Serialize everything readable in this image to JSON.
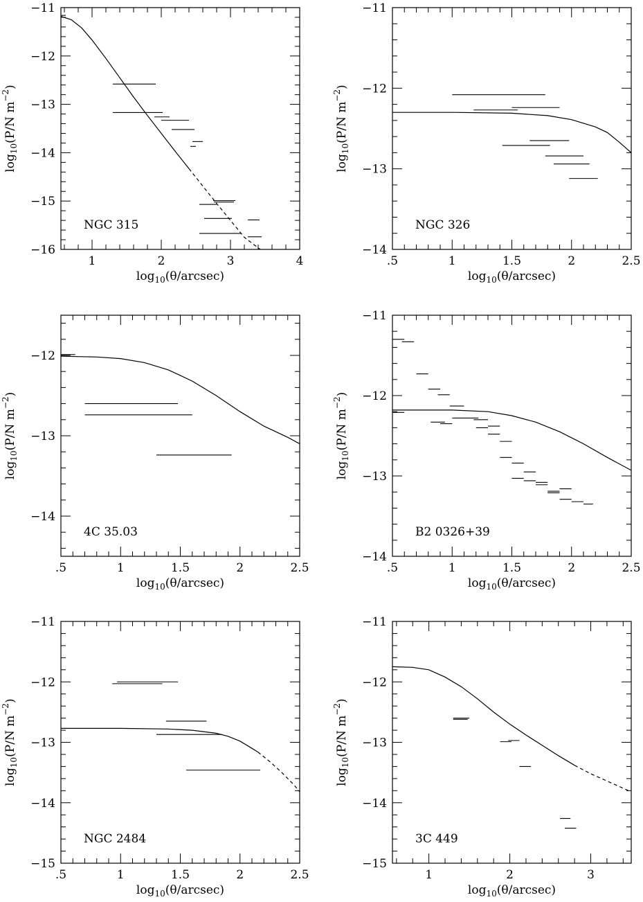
{
  "figure": {
    "panels": [
      {
        "id": "ngc315",
        "source_label": "NGC  315",
        "xlabel_main": "log",
        "xlabel_sub": "10",
        "xlabel_rest": "(θ/arcsec)",
        "ylabel_main": "log",
        "ylabel_sub": "10",
        "ylabel_mid": "(P/N m",
        "ylabel_sup": "−2",
        "ylabel_end": ")",
        "xlim": [
          0.55,
          4.0
        ],
        "ylim": [
          -16,
          -11
        ],
        "xticks": [
          1,
          2,
          3,
          4
        ],
        "xtick_labels": [
          "1",
          "2",
          "3",
          "4"
        ],
        "xminor_step": 0.2,
        "yticks": [
          -16,
          -15,
          -14,
          -13,
          -12,
          -11
        ],
        "ytick_labels": [
          "−16",
          "−15",
          "−14",
          "−13",
          "−12",
          "−11"
        ],
        "yminor_step": 0.2
      },
      {
        "id": "ngc326",
        "source_label": "NGC  326",
        "xlabel_main": "log",
        "xlabel_sub": "10",
        "xlabel_rest": "(θ/arcsec)",
        "ylabel_main": "log",
        "ylabel_sub": "10",
        "ylabel_mid": "(P/N m",
        "ylabel_sup": "−2",
        "ylabel_end": ")",
        "xlim": [
          0.5,
          2.5
        ],
        "ylim": [
          -14,
          -11
        ],
        "xticks": [
          0.5,
          1,
          1.5,
          2,
          2.5
        ],
        "xtick_labels": [
          ".5",
          "1",
          "1.5",
          "2",
          "2.5"
        ],
        "xminor_step": 0.1,
        "yticks": [
          -14,
          -13,
          -12,
          -11
        ],
        "ytick_labels": [
          "−14",
          "−13",
          "−12",
          "−11"
        ],
        "yminor_step": 0.2
      },
      {
        "id": "4c3503",
        "source_label": "4C  35.03",
        "xlabel_main": "log",
        "xlabel_sub": "10",
        "xlabel_rest": "(θ/arcsec)",
        "ylabel_main": "log",
        "ylabel_sub": "10",
        "ylabel_mid": "(P/N m",
        "ylabel_sup": "−2",
        "ylabel_end": ")",
        "xlim": [
          0.5,
          2.5
        ],
        "ylim": [
          -14.5,
          -11.5
        ],
        "xticks": [
          0.5,
          1,
          1.5,
          2,
          2.5
        ],
        "xtick_labels": [
          ".5",
          "1",
          "1.5",
          "2",
          "2.5"
        ],
        "xminor_step": 0.1,
        "yticks": [
          -14,
          -13,
          -12
        ],
        "ytick_labels": [
          "−14",
          "−13",
          "−12"
        ],
        "yminor_step": 0.2
      },
      {
        "id": "b20326",
        "source_label": "B2  0326+39",
        "xlabel_main": "log",
        "xlabel_sub": "10",
        "xlabel_rest": "(θ/arcsec)",
        "ylabel_main": "log",
        "ylabel_sub": "10",
        "ylabel_mid": "(P/N m",
        "ylabel_sup": "−2",
        "ylabel_end": ")",
        "xlim": [
          0.5,
          2.5
        ],
        "ylim": [
          -14,
          -11
        ],
        "xticks": [
          0.5,
          1,
          1.5,
          2,
          2.5
        ],
        "xtick_labels": [
          ".5",
          "1",
          "1.5",
          "2",
          "2.5"
        ],
        "xminor_step": 0.1,
        "yticks": [
          -14,
          -13,
          -12,
          -11
        ],
        "ytick_labels": [
          "−14",
          "−13",
          "−12",
          "−11"
        ],
        "yminor_step": 0.2
      },
      {
        "id": "ngc2484",
        "source_label": "NGC  2484",
        "xlabel_main": "log",
        "xlabel_sub": "10",
        "xlabel_rest": "(θ/arcsec)",
        "ylabel_main": "log",
        "ylabel_sub": "10",
        "ylabel_mid": "(P/N m",
        "ylabel_sup": "−2",
        "ylabel_end": ")",
        "xlim": [
          0.5,
          2.5
        ],
        "ylim": [
          -15,
          -11
        ],
        "xticks": [
          0.5,
          1,
          1.5,
          2,
          2.5
        ],
        "xtick_labels": [
          ".5",
          "1",
          "1.5",
          "2",
          "2.5"
        ],
        "xminor_step": 0.1,
        "yticks": [
          -15,
          -14,
          -13,
          -12,
          -11
        ],
        "ytick_labels": [
          "−15",
          "−14",
          "−13",
          "−12",
          "−11"
        ],
        "yminor_step": 0.2
      },
      {
        "id": "3c449",
        "source_label": "3C  449",
        "xlabel_main": "log",
        "xlabel_sub": "10",
        "xlabel_rest": "(θ/arcsec)",
        "ylabel_main": "log",
        "ylabel_sub": "10",
        "ylabel_mid": "(P/N m",
        "ylabel_sup": "−2",
        "ylabel_end": ")",
        "xlim": [
          0.55,
          3.5
        ],
        "ylim": [
          -15,
          -11
        ],
        "xticks": [
          1,
          2,
          3
        ],
        "xtick_labels": [
          "1",
          "2",
          "3"
        ],
        "xminor_step": 0.2,
        "yticks": [
          -15,
          -14,
          -13,
          -12,
          -11
        ],
        "ytick_labels": [
          "−15",
          "−14",
          "−13",
          "−12",
          "−11"
        ],
        "yminor_step": 0.2
      }
    ]
  },
  "chart_data": [
    {
      "type": "line",
      "source": "NGC  315",
      "xlabel": "log10(θ/arcsec)",
      "ylabel": "log10(P/N m^-2)",
      "xlim": [
        0.55,
        4.0
      ],
      "ylim": [
        -16,
        -11
      ],
      "model_curve": {
        "solid": [
          [
            0.55,
            -11.18
          ],
          [
            0.7,
            -11.25
          ],
          [
            0.85,
            -11.42
          ],
          [
            1.0,
            -11.67
          ],
          [
            1.2,
            -12.05
          ],
          [
            1.4,
            -12.45
          ],
          [
            1.6,
            -12.85
          ],
          [
            1.8,
            -13.23
          ],
          [
            2.0,
            -13.6
          ],
          [
            2.2,
            -13.97
          ],
          [
            2.4,
            -14.33
          ]
        ],
        "dashed": [
          [
            2.4,
            -14.33
          ],
          [
            2.6,
            -14.69
          ],
          [
            2.8,
            -15.05
          ],
          [
            3.0,
            -15.4
          ],
          [
            3.2,
            -15.75
          ],
          [
            3.43,
            -16.0
          ]
        ]
      },
      "pressure_ranges": [
        {
          "x": [
            0.55,
            0.62
          ],
          "y": -11.16
        },
        {
          "x": [
            1.3,
            1.92
          ],
          "y": -12.58
        },
        {
          "x": [
            1.3,
            2.02
          ],
          "y": -13.17
        },
        {
          "x": [
            1.9,
            2.12
          ],
          "y": -13.26
        },
        {
          "x": [
            2.0,
            2.4
          ],
          "y": -13.33
        },
        {
          "x": [
            2.15,
            2.48
          ],
          "y": -13.52
        },
        {
          "x": [
            2.45,
            2.6
          ],
          "y": -13.77
        },
        {
          "x": [
            2.42,
            2.5
          ],
          "y": -13.87
        },
        {
          "x": [
            2.55,
            2.8
          ],
          "y": -15.07
        },
        {
          "x": [
            2.75,
            3.07
          ],
          "y": -14.99
        },
        {
          "x": [
            2.76,
            3.05
          ],
          "y": -15.02
        },
        {
          "x": [
            2.62,
            3.02
          ],
          "y": -15.36
        },
        {
          "x": [
            3.25,
            3.42
          ],
          "y": -15.39
        },
        {
          "x": [
            2.55,
            3.15
          ],
          "y": -15.67
        },
        {
          "x": [
            3.25,
            3.45
          ],
          "y": -15.74
        }
      ]
    },
    {
      "type": "line",
      "source": "NGC  326",
      "xlabel": "log10(θ/arcsec)",
      "ylabel": "log10(P/N m^-2)",
      "xlim": [
        0.5,
        2.5
      ],
      "ylim": [
        -14,
        -11
      ],
      "model_curve": {
        "solid": [
          [
            0.5,
            -12.3
          ],
          [
            1.0,
            -12.3
          ],
          [
            1.5,
            -12.31
          ],
          [
            1.8,
            -12.34
          ],
          [
            2.0,
            -12.39
          ],
          [
            2.2,
            -12.48
          ],
          [
            2.3,
            -12.55
          ],
          [
            2.4,
            -12.67
          ],
          [
            2.5,
            -12.8
          ]
        ],
        "dashed": []
      },
      "pressure_ranges": [
        {
          "x": [
            1.0,
            1.78
          ],
          "y": -12.08
        },
        {
          "x": [
            1.18,
            1.55
          ],
          "y": -12.27
        },
        {
          "x": [
            1.5,
            1.9
          ],
          "y": -12.24
        },
        {
          "x": [
            1.42,
            1.82
          ],
          "y": -12.71
        },
        {
          "x": [
            1.65,
            1.98
          ],
          "y": -12.65
        },
        {
          "x": [
            1.78,
            2.1
          ],
          "y": -12.84
        },
        {
          "x": [
            1.85,
            2.15
          ],
          "y": -12.94
        },
        {
          "x": [
            1.98,
            2.22
          ],
          "y": -13.12
        }
      ]
    },
    {
      "type": "line",
      "source": "4C  35.03",
      "xlabel": "log10(θ/arcsec)",
      "ylabel": "log10(P/N m^-2)",
      "xlim": [
        0.5,
        2.5
      ],
      "ylim": [
        -14.5,
        -11.5
      ],
      "model_curve": {
        "solid": [
          [
            0.5,
            -12.01
          ],
          [
            0.8,
            -12.02
          ],
          [
            1.0,
            -12.04
          ],
          [
            1.2,
            -12.09
          ],
          [
            1.4,
            -12.18
          ],
          [
            1.6,
            -12.32
          ],
          [
            1.8,
            -12.5
          ],
          [
            2.0,
            -12.7
          ],
          [
            2.2,
            -12.88
          ],
          [
            2.4,
            -13.02
          ],
          [
            2.5,
            -13.1
          ]
        ],
        "dashed": []
      },
      "pressure_ranges": [
        {
          "x": [
            0.5,
            0.62
          ],
          "y": -11.99
        },
        {
          "x": [
            0.7,
            1.48
          ],
          "y": -12.6
        },
        {
          "x": [
            0.7,
            1.6
          ],
          "y": -12.74
        },
        {
          "x": [
            1.3,
            1.93
          ],
          "y": -13.24
        }
      ]
    },
    {
      "type": "line",
      "source": "B2  0326+39",
      "xlabel": "log10(θ/arcsec)",
      "ylabel": "log10(P/N m^-2)",
      "xlim": [
        0.5,
        2.5
      ],
      "ylim": [
        -14,
        -11
      ],
      "model_curve": {
        "solid": [
          [
            0.5,
            -12.18
          ],
          [
            1.0,
            -12.18
          ],
          [
            1.3,
            -12.2
          ],
          [
            1.5,
            -12.25
          ],
          [
            1.7,
            -12.33
          ],
          [
            1.9,
            -12.45
          ],
          [
            2.1,
            -12.6
          ],
          [
            2.3,
            -12.77
          ],
          [
            2.5,
            -12.93
          ]
        ],
        "dashed": []
      },
      "pressure_ranges": [
        {
          "x": [
            0.5,
            0.6
          ],
          "y": -11.3
        },
        {
          "x": [
            0.58,
            0.68
          ],
          "y": -11.33
        },
        {
          "x": [
            0.7,
            0.8
          ],
          "y": -11.73
        },
        {
          "x": [
            0.8,
            0.9
          ],
          "y": -11.92
        },
        {
          "x": [
            0.88,
            0.98
          ],
          "y": -11.99
        },
        {
          "x": [
            0.98,
            1.1
          ],
          "y": -12.13
        },
        {
          "x": [
            0.5,
            0.6
          ],
          "y": -12.21
        },
        {
          "x": [
            0.82,
            0.94
          ],
          "y": -12.33
        },
        {
          "x": [
            0.9,
            1.0
          ],
          "y": -12.35
        },
        {
          "x": [
            1.0,
            1.22
          ],
          "y": -12.28
        },
        {
          "x": [
            1.18,
            1.3
          ],
          "y": -12.3
        },
        {
          "x": [
            1.2,
            1.3
          ],
          "y": -12.4
        },
        {
          "x": [
            1.3,
            1.4
          ],
          "y": -12.38
        },
        {
          "x": [
            1.3,
            1.4
          ],
          "y": -12.48
        },
        {
          "x": [
            1.4,
            1.5
          ],
          "y": -12.57
        },
        {
          "x": [
            1.4,
            1.5
          ],
          "y": -12.77
        },
        {
          "x": [
            1.5,
            1.6
          ],
          "y": -12.84
        },
        {
          "x": [
            1.5,
            1.6
          ],
          "y": -13.03
        },
        {
          "x": [
            1.6,
            1.7
          ],
          "y": -12.95
        },
        {
          "x": [
            1.6,
            1.7
          ],
          "y": -13.06
        },
        {
          "x": [
            1.7,
            1.8
          ],
          "y": -13.08
        },
        {
          "x": [
            1.7,
            1.8
          ],
          "y": -13.11
        },
        {
          "x": [
            1.8,
            1.9
          ],
          "y": -13.19
        },
        {
          "x": [
            1.8,
            1.9
          ],
          "y": -13.21
        },
        {
          "x": [
            1.9,
            2.0
          ],
          "y": -13.16
        },
        {
          "x": [
            1.9,
            2.0
          ],
          "y": -13.29
        },
        {
          "x": [
            2.0,
            2.1
          ],
          "y": -13.32
        },
        {
          "x": [
            2.1,
            2.18
          ],
          "y": -13.35
        }
      ]
    },
    {
      "type": "line",
      "source": "NGC  2484",
      "xlabel": "log10(θ/arcsec)",
      "ylabel": "log10(P/N m^-2)",
      "xlim": [
        0.5,
        2.5
      ],
      "ylim": [
        -15,
        -11
      ],
      "model_curve": {
        "solid": [
          [
            0.5,
            -12.77
          ],
          [
            1.0,
            -12.77
          ],
          [
            1.4,
            -12.78
          ],
          [
            1.6,
            -12.8
          ],
          [
            1.8,
            -12.85
          ],
          [
            1.9,
            -12.9
          ],
          [
            2.0,
            -12.98
          ],
          [
            2.1,
            -13.1
          ],
          [
            2.15,
            -13.16
          ]
        ],
        "dashed": [
          [
            2.15,
            -13.16
          ],
          [
            2.25,
            -13.32
          ],
          [
            2.35,
            -13.5
          ],
          [
            2.45,
            -13.7
          ],
          [
            2.5,
            -13.82
          ]
        ]
      },
      "pressure_ranges": [
        {
          "x": [
            0.97,
            1.48
          ],
          "y": -12.0
        },
        {
          "x": [
            0.93,
            1.35
          ],
          "y": -12.03
        },
        {
          "x": [
            1.38,
            1.72
          ],
          "y": -12.65
        },
        {
          "x": [
            1.3,
            1.85
          ],
          "y": -12.87
        },
        {
          "x": [
            1.55,
            2.17
          ],
          "y": -13.46
        }
      ]
    },
    {
      "type": "line",
      "source": "3C  449",
      "xlabel": "log10(θ/arcsec)",
      "ylabel": "log10(P/N m^-2)",
      "xlim": [
        0.55,
        3.5
      ],
      "ylim": [
        -15,
        -11
      ],
      "model_curve": {
        "solid": [
          [
            0.55,
            -11.75
          ],
          [
            0.8,
            -11.76
          ],
          [
            1.0,
            -11.8
          ],
          [
            1.2,
            -11.92
          ],
          [
            1.4,
            -12.08
          ],
          [
            1.6,
            -12.28
          ],
          [
            1.8,
            -12.5
          ],
          [
            2.0,
            -12.7
          ],
          [
            2.2,
            -12.88
          ],
          [
            2.4,
            -13.05
          ],
          [
            2.6,
            -13.22
          ],
          [
            2.8,
            -13.38
          ]
        ],
        "dashed": [
          [
            2.8,
            -13.38
          ],
          [
            3.0,
            -13.52
          ],
          [
            3.2,
            -13.64
          ],
          [
            3.4,
            -13.76
          ],
          [
            3.5,
            -13.82
          ]
        ]
      },
      "pressure_ranges": [
        {
          "x": [
            1.3,
            1.5
          ],
          "y": -12.6
        },
        {
          "x": [
            1.3,
            1.48
          ],
          "y": -12.62
        },
        {
          "x": [
            1.88,
            2.02
          ],
          "y": -12.99
        },
        {
          "x": [
            1.98,
            2.12
          ],
          "y": -12.97
        },
        {
          "x": [
            2.12,
            2.26
          ],
          "y": -13.4
        },
        {
          "x": [
            2.62,
            2.75
          ],
          "y": -14.26
        },
        {
          "x": [
            2.68,
            2.82
          ],
          "y": -14.42
        }
      ]
    }
  ]
}
